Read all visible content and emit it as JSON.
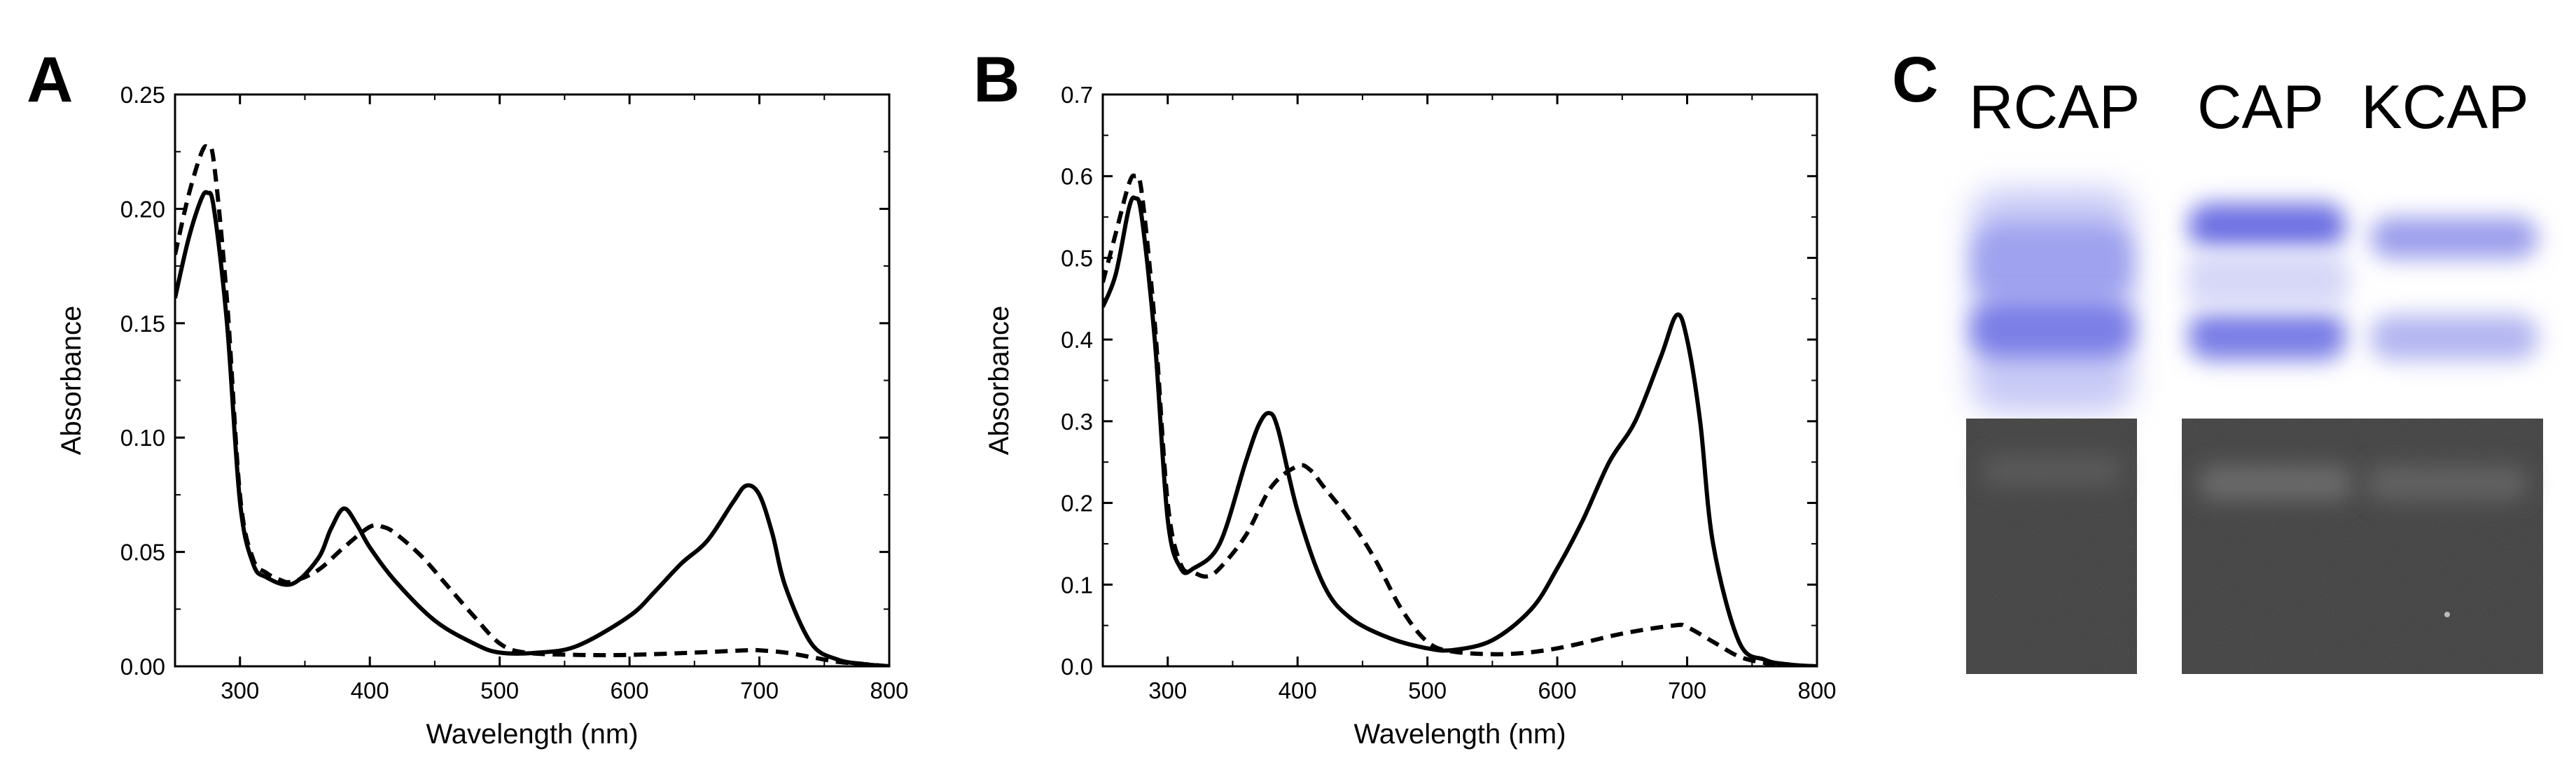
{
  "panels": {
    "a": "A",
    "b": "B",
    "c": "C"
  },
  "chart_data": [
    {
      "type": "line",
      "xlabel": "Wavelength (nm)",
      "ylabel": "Absorbance",
      "xlim": [
        250,
        800
      ],
      "ylim": [
        0,
        0.25
      ],
      "xticks": [
        "300",
        "400",
        "500",
        "600",
        "700",
        "800"
      ],
      "yticks": [
        "0.00",
        "0.05",
        "0.10",
        "0.15",
        "0.20",
        "0.25"
      ],
      "xtick_values": [
        300,
        400,
        500,
        600,
        700,
        800
      ],
      "ytick_values": [
        0,
        0.05,
        0.1,
        0.15,
        0.2,
        0.25
      ],
      "series": [
        {
          "style": "solid",
          "x": [
            250,
            260,
            270,
            275,
            280,
            290,
            300,
            310,
            320,
            340,
            360,
            370,
            380,
            390,
            400,
            420,
            450,
            480,
            500,
            530,
            560,
            600,
            620,
            640,
            660,
            680,
            690,
            700,
            710,
            720,
            740,
            760,
            780,
            800
          ],
          "y": [
            0.161,
            0.186,
            0.204,
            0.207,
            0.2,
            0.15,
            0.072,
            0.045,
            0.039,
            0.036,
            0.047,
            0.06,
            0.069,
            0.062,
            0.052,
            0.037,
            0.02,
            0.01,
            0.006,
            0.006,
            0.009,
            0.022,
            0.033,
            0.045,
            0.055,
            0.072,
            0.079,
            0.075,
            0.058,
            0.035,
            0.01,
            0.003,
            0.001,
            0.0
          ]
        },
        {
          "style": "dashed",
          "x": [
            250,
            260,
            270,
            275,
            280,
            290,
            300,
            310,
            320,
            330,
            340,
            360,
            380,
            400,
            410,
            420,
            440,
            460,
            480,
            500,
            520,
            560,
            600,
            650,
            690,
            700,
            720,
            740,
            760,
            780,
            800
          ],
          "y": [
            0.18,
            0.205,
            0.224,
            0.227,
            0.22,
            0.16,
            0.075,
            0.047,
            0.041,
            0.038,
            0.037,
            0.042,
            0.052,
            0.061,
            0.061,
            0.058,
            0.048,
            0.035,
            0.022,
            0.01,
            0.006,
            0.005,
            0.005,
            0.006,
            0.007,
            0.007,
            0.006,
            0.004,
            0.002,
            0.001,
            0.0
          ]
        }
      ]
    },
    {
      "type": "line",
      "xlabel": "Wavelength (nm)",
      "ylabel": "Absorbance",
      "xlim": [
        250,
        800
      ],
      "ylim": [
        0,
        0.7
      ],
      "xticks": [
        "300",
        "400",
        "500",
        "600",
        "700",
        "800"
      ],
      "yticks": [
        "0.0",
        "0.1",
        "0.2",
        "0.3",
        "0.4",
        "0.5",
        "0.6",
        "0.7"
      ],
      "xtick_values": [
        300,
        400,
        500,
        600,
        700,
        800
      ],
      "ytick_values": [
        0,
        0.1,
        0.2,
        0.3,
        0.4,
        0.5,
        0.6,
        0.7
      ],
      "series": [
        {
          "style": "solid",
          "x": [
            250,
            260,
            270,
            275,
            280,
            290,
            300,
            310,
            320,
            340,
            360,
            370,
            378,
            385,
            400,
            420,
            440,
            470,
            500,
            520,
            550,
            580,
            600,
            620,
            640,
            660,
            680,
            692,
            700,
            710,
            720,
            740,
            760,
            780,
            800
          ],
          "y": [
            0.44,
            0.48,
            0.56,
            0.573,
            0.55,
            0.4,
            0.18,
            0.12,
            0.12,
            0.15,
            0.25,
            0.295,
            0.31,
            0.29,
            0.19,
            0.1,
            0.06,
            0.035,
            0.022,
            0.02,
            0.032,
            0.07,
            0.12,
            0.18,
            0.25,
            0.3,
            0.38,
            0.43,
            0.4,
            0.3,
            0.15,
            0.03,
            0.008,
            0.002,
            0.0
          ]
        },
        {
          "style": "dashed",
          "x": [
            250,
            260,
            270,
            275,
            280,
            290,
            300,
            310,
            320,
            330,
            340,
            360,
            380,
            400,
            410,
            420,
            440,
            460,
            480,
            500,
            520,
            560,
            600,
            650,
            690,
            700,
            720,
            740,
            760,
            780,
            800
          ],
          "y": [
            0.47,
            0.53,
            0.59,
            0.6,
            0.58,
            0.42,
            0.2,
            0.125,
            0.115,
            0.11,
            0.12,
            0.16,
            0.22,
            0.245,
            0.24,
            0.22,
            0.18,
            0.13,
            0.07,
            0.03,
            0.018,
            0.015,
            0.022,
            0.04,
            0.05,
            0.048,
            0.03,
            0.012,
            0.004,
            0.001,
            0.0
          ]
        }
      ]
    }
  ],
  "gel": {
    "lanes": [
      "RCAP",
      "CAP",
      "KCAP"
    ]
  }
}
